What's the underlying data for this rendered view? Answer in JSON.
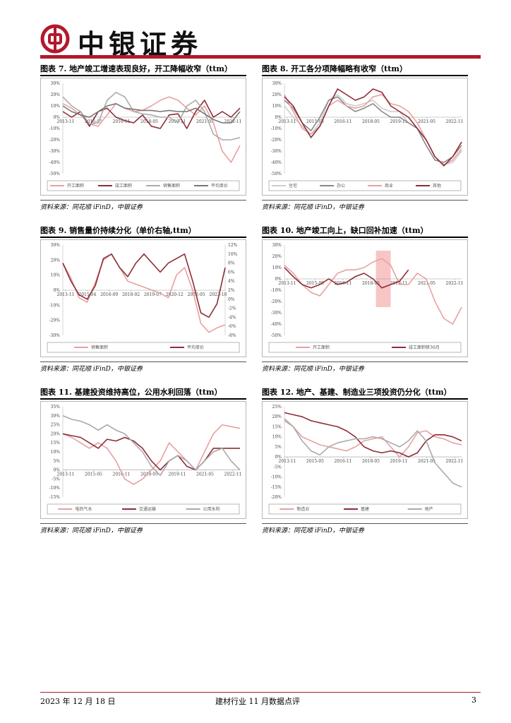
{
  "header": {
    "brand_name": "中银证券",
    "brand_color": "#b3182c",
    "logo_icon": "bank-of-china-logo-icon"
  },
  "panels": [
    {
      "id": "fig7",
      "title": "图表 7. 地产竣工增速表现良好，开工降幅收窄（ttm）",
      "source": "资料来源：同花顺 iFinD，中银证券",
      "chart_data": {
        "type": "line",
        "y_ticks": [
          "30%",
          "20%",
          "10%",
          "0%",
          "-10%",
          "-20%",
          "-30%",
          "-40%",
          "-50%"
        ],
        "ylim": [
          -50,
          30
        ],
        "x_ticks": [
          "2013-11",
          "2015-05",
          "2016-11",
          "2018-05",
          "2019-11",
          "2021-05",
          "2022-11"
        ],
        "x": [
          0,
          6,
          12,
          18,
          24,
          30,
          36,
          42,
          48,
          54,
          60,
          66,
          72,
          78,
          84,
          90,
          96,
          102,
          108,
          114,
          120
        ],
        "series": [
          {
            "name": "开工面积",
            "color": "#e8a0a0",
            "values": [
              12,
              8,
              2,
              -6,
              -8,
              2,
              12,
              8,
              5,
              6,
              10,
              15,
              18,
              15,
              8,
              2,
              10,
              -5,
              -30,
              -40,
              -25
            ]
          },
          {
            "name": "竣工面积",
            "color": "#8c2d37",
            "values": [
              5,
              0,
              5,
              -8,
              5,
              8,
              0,
              -3,
              -5,
              2,
              -8,
              -10,
              2,
              3,
              -10,
              5,
              15,
              0,
              5,
              0,
              8
            ]
          },
          {
            "name": "销售面积",
            "color": "#aaaaaa",
            "values": [
              18,
              10,
              5,
              -6,
              -5,
              15,
              22,
              18,
              5,
              3,
              2,
              0,
              0,
              -5,
              10,
              15,
              5,
              -15,
              -20,
              -20,
              -18
            ]
          },
          {
            "name": "平均单价",
            "color": "#777777",
            "values": [
              10,
              5,
              2,
              0,
              5,
              10,
              12,
              8,
              7,
              6,
              6,
              5,
              6,
              5,
              5,
              8,
              3,
              -2,
              -5,
              -5,
              5
            ]
          }
        ]
      }
    },
    {
      "id": "fig8",
      "title": "图表 8. 开工各分项降幅略有收窄（ttm）",
      "source": "资料来源：同花顺 iFinD，中银证券",
      "chart_data": {
        "type": "line",
        "y_ticks": [
          "30%",
          "20%",
          "10%",
          "0%",
          "-10%",
          "-20%",
          "-30%",
          "-40%",
          "-50%"
        ],
        "ylim": [
          -50,
          30
        ],
        "x_ticks": [
          "2013-11",
          "2015-05",
          "2016-11",
          "2018-05",
          "2019-11",
          "2021-05",
          "2022-11"
        ],
        "x": [
          0,
          6,
          12,
          18,
          24,
          30,
          36,
          42,
          48,
          54,
          60,
          66,
          72,
          78,
          84,
          90,
          96,
          102,
          108,
          114,
          120
        ],
        "series": [
          {
            "name": "住宅",
            "color": "#cccccc",
            "values": [
              10,
              0,
              -8,
              -15,
              -5,
              15,
              20,
              12,
              10,
              12,
              15,
              8,
              5,
              5,
              -5,
              -10,
              -20,
              -35,
              -42,
              -40,
              -30
            ]
          },
          {
            "name": "办公",
            "color": "#888888",
            "values": [
              15,
              8,
              -5,
              -12,
              0,
              15,
              18,
              10,
              5,
              8,
              12,
              5,
              0,
              0,
              -5,
              -10,
              -25,
              -38,
              -40,
              -35,
              -25
            ]
          },
          {
            "name": "商业",
            "color": "#e8a0a0",
            "values": [
              20,
              5,
              -10,
              -15,
              -8,
              10,
              15,
              10,
              8,
              10,
              18,
              20,
              12,
              10,
              5,
              -5,
              -20,
              -35,
              -42,
              -38,
              -28
            ]
          },
          {
            "name": "其他",
            "color": "#8c2d37",
            "values": [
              18,
              10,
              -5,
              -18,
              -8,
              10,
              25,
              20,
              15,
              18,
              25,
              22,
              10,
              5,
              0,
              -10,
              -20,
              -35,
              -43,
              -35,
              -22
            ]
          }
        ]
      }
    },
    {
      "id": "fig9",
      "title": "图表 9. 销售量价持续分化（单价右轴,ttm）",
      "source": "资料来源：同花顺 iFinD，中银证券",
      "chart_data": {
        "type": "line",
        "y_ticks": [
          "30%",
          "20%",
          "10%",
          "0%",
          "-10%",
          "-20%",
          "-30%"
        ],
        "ylim": [
          -30,
          30
        ],
        "y2_ticks": [
          "12%",
          "10%",
          "8%",
          "6%",
          "4%",
          "2%",
          "0%",
          "-2%",
          "-4%",
          "-6%",
          "-8%"
        ],
        "y2lim": [
          -8,
          12
        ],
        "x_ticks": [
          "2013-11",
          "2015-04",
          "2016-09",
          "2018-02",
          "2019-07",
          "2020-12",
          "2022-05",
          "2023-10"
        ],
        "x": [
          0,
          6,
          12,
          18,
          24,
          30,
          36,
          42,
          48,
          54,
          60,
          66,
          72,
          78,
          84,
          90,
          96,
          102,
          108,
          114,
          120
        ],
        "series": [
          {
            "name": "销售面积",
            "color": "#e8a0a0",
            "axis": "left",
            "values": [
              18,
              8,
              -5,
              -8,
              5,
              20,
              24,
              15,
              6,
              4,
              2,
              0,
              -2,
              -5,
              10,
              15,
              0,
              -22,
              -28,
              -25,
              -23
            ]
          },
          {
            "name": "平均单价",
            "color": "#8c2d37",
            "axis": "right",
            "values": [
              8,
              4,
              1,
              0,
              3,
              9,
              10,
              7,
              5,
              8,
              10,
              8,
              6,
              8,
              9,
              10,
              4,
              -3,
              -4,
              -1,
              7
            ]
          }
        ]
      }
    },
    {
      "id": "fig10",
      "title": "图表 10. 地产竣工向上，缺口回补加速（ttm）",
      "source": "资料来源：同花顺 iFinD，中银证券",
      "chart_data": {
        "type": "line",
        "y_ticks": [
          "30%",
          "20%",
          "10%",
          "0%",
          "-10%",
          "-20%",
          "-30%",
          "-40%",
          "-50%"
        ],
        "ylim": [
          -50,
          30
        ],
        "x_ticks": [
          "2013-11",
          "2015-05",
          "2016-11",
          "2018-05",
          "2019-11",
          "2021-05",
          "2022-11"
        ],
        "x": [
          0,
          6,
          12,
          18,
          24,
          30,
          36,
          42,
          48,
          54,
          60,
          66,
          72,
          78,
          84,
          90,
          96,
          102,
          108,
          114,
          120
        ],
        "highlight_range": [
          62,
          72
        ],
        "series": [
          {
            "name": "开工面积",
            "color": "#e8a0a0",
            "values": [
              12,
              5,
              -5,
              -12,
              -15,
              -5,
              5,
              8,
              8,
              10,
              15,
              18,
              12,
              -5,
              -5,
              5,
              0,
              -20,
              -35,
              -40,
              -25
            ]
          },
          {
            "name": "竣工面积移36月",
            "color": "#8c2d37",
            "values": [
              10,
              2,
              -5,
              -8,
              -5,
              0,
              -5,
              -3,
              2,
              5,
              0,
              -8,
              -5,
              -2,
              8,
              null,
              null,
              null,
              null,
              null,
              null
            ]
          }
        ]
      }
    },
    {
      "id": "fig11",
      "title": "图表 11. 基建投资维持高位，公用水利回落（ttm）",
      "source": "资料来源：同花顺 iFinD，中银证券",
      "chart_data": {
        "type": "line",
        "y_ticks": [
          "35%",
          "30%",
          "25%",
          "20%",
          "15%",
          "10%",
          "5%",
          "0%",
          "-5%",
          "-10%",
          "-15%"
        ],
        "ylim": [
          -15,
          35
        ],
        "x_ticks": [
          "2013-11",
          "2015-05",
          "2016-11",
          "2018-05",
          "2019-11",
          "2021-05",
          "2022-11"
        ],
        "x": [
          0,
          6,
          12,
          18,
          24,
          30,
          36,
          42,
          48,
          54,
          60,
          66,
          72,
          78,
          84,
          90,
          96,
          102,
          108,
          114,
          120
        ],
        "series": [
          {
            "name": "电热气水",
            "color": "#e8a0a0",
            "values": [
              20,
              18,
              15,
              12,
              15,
              12,
              5,
              -5,
              -8,
              -5,
              0,
              5,
              15,
              10,
              5,
              0,
              10,
              20,
              25,
              24,
              23
            ]
          },
          {
            "name": "交通运输",
            "color": "#8c2d37",
            "values": [
              20,
              19,
              18,
              15,
              12,
              17,
              16,
              18,
              16,
              12,
              5,
              0,
              5,
              8,
              2,
              0,
              5,
              12,
              12,
              12,
              12
            ]
          },
          {
            "name": "公用水利",
            "color": "#aaaaaa",
            "values": [
              30,
              28,
              27,
              25,
              22,
              25,
              22,
              20,
              15,
              10,
              2,
              -3,
              5,
              8,
              5,
              0,
              5,
              10,
              12,
              5,
              0
            ]
          }
        ]
      }
    },
    {
      "id": "fig12",
      "title": "图表 12. 地产、基建、制造业三项投资仍分化（ttm）",
      "source": "资料来源：同花顺 iFinD，中银证券",
      "chart_data": {
        "type": "line",
        "y_ticks": [
          "25%",
          "20%",
          "15%",
          "10%",
          "5%",
          "0%",
          "-5%",
          "-10%",
          "-15%",
          "-20%"
        ],
        "ylim": [
          -20,
          25
        ],
        "x_ticks": [
          "2013-11",
          "2015-05",
          "2016-11",
          "2018-05",
          "2019-11",
          "2021-05",
          "2022-11"
        ],
        "x": [
          0,
          6,
          12,
          18,
          24,
          30,
          36,
          42,
          48,
          54,
          60,
          66,
          72,
          78,
          84,
          90,
          96,
          102,
          108,
          114,
          120
        ],
        "series": [
          {
            "name": "制造业",
            "color": "#e8a0a0",
            "values": [
              18,
              15,
              10,
              8,
              6,
              5,
              4,
              3,
              5,
              8,
              9,
              10,
              5,
              0,
              5,
              12,
              13,
              10,
              9,
              7,
              6
            ]
          },
          {
            "name": "基建",
            "color": "#8c2d37",
            "values": [
              22,
              21,
              20,
              18,
              17,
              16,
              15,
              13,
              10,
              5,
              3,
              2,
              3,
              2,
              0,
              2,
              8,
              11,
              11,
              10,
              8
            ]
          },
          {
            "name": "地产",
            "color": "#aaaaaa",
            "values": [
              19,
              15,
              8,
              3,
              1,
              5,
              7,
              8,
              9,
              9,
              10,
              9,
              7,
              5,
              8,
              13,
              8,
              -3,
              -8,
              -13,
              -15
            ]
          }
        ]
      }
    }
  ],
  "footer": {
    "date": "2023 年 12 月 18 日",
    "report_name": "建材行业 11 月数据点评",
    "page_number": "3"
  }
}
